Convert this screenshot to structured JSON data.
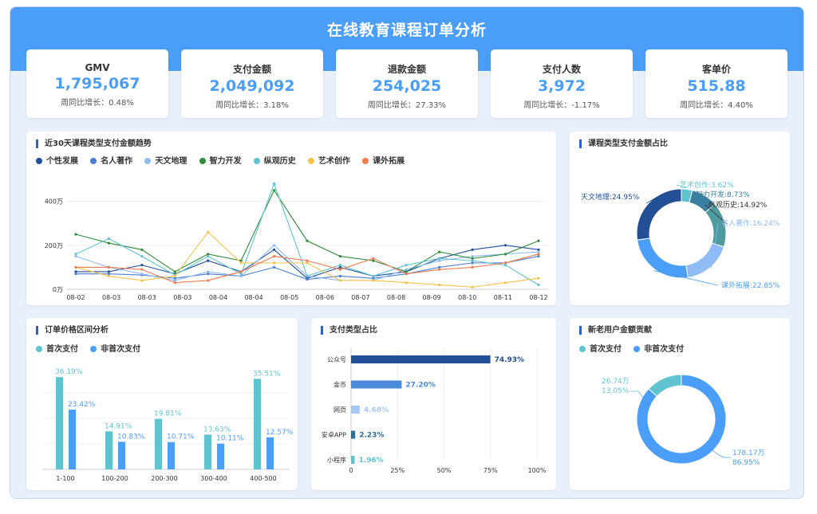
{
  "title": "在线教育课程订单分析",
  "kpis": [
    {
      "label": "GMV",
      "value": "1,795,067",
      "sub": "周同比增长：0.48%"
    },
    {
      "label": "支付金额",
      "value": "2,049,092",
      "sub": "周同比增长：3.18%"
    },
    {
      "label": "退款金额",
      "value": "254,025",
      "sub": "周同比增长：27.33%"
    },
    {
      "label": "支付人数",
      "value": "3,972",
      "sub": "周同比增长：-1.17%"
    },
    {
      "label": "客单价",
      "value": "515.88",
      "sub": "周同比增长：4.40%"
    }
  ],
  "panels": {
    "trend": "近30天课程类型支付金额趋势",
    "share": "课程类型支付金额占比",
    "price": "订单价格区间分析",
    "paytype": "支付类型占比",
    "users": "新老用户金额贡献"
  },
  "colors": {
    "brand": "#4b9ef7",
    "series": [
      "#1f4e9c",
      "#4a7fd4",
      "#8fbcf4",
      "#2e8b3a",
      "#5fc4cf",
      "#f5c24a",
      "#f07b52"
    ]
  },
  "chart_data": [
    {
      "type": "line",
      "categories": [
        "08-02",
        "08-03",
        "08-03",
        "08-03",
        "08-04",
        "08-04",
        "08-05",
        "08-05",
        "08-06",
        "08-07",
        "08-08",
        "08-09",
        "08-10",
        "08-11",
        "08-12"
      ],
      "xtick_labels": [
        "08-02",
        "08-03",
        "08-03",
        "08-03",
        "08-04",
        "08-04",
        "08-05",
        "08-06",
        "08-07",
        "08-08",
        "08-09",
        "08-10",
        "08-11",
        "08-12"
      ],
      "yticks": [
        "0万",
        "200万",
        "400万"
      ],
      "ylim": [
        0,
        500
      ],
      "grid": true,
      "legend": "top-left",
      "series": [
        {
          "name": "个性发展",
          "values": [
            80,
            80,
            110,
            70,
            130,
            80,
            180,
            50,
            100,
            60,
            80,
            140,
            180,
            200,
            180
          ]
        },
        {
          "name": "名人著作",
          "values": [
            70,
            70,
            65,
            50,
            70,
            60,
            100,
            45,
            60,
            50,
            70,
            100,
            120,
            120,
            150
          ]
        },
        {
          "name": "天文地理",
          "values": [
            150,
            100,
            70,
            40,
            80,
            60,
            200,
            60,
            40,
            40,
            90,
            130,
            150,
            160,
            170
          ]
        },
        {
          "name": "智力开发",
          "values": [
            250,
            210,
            180,
            80,
            160,
            130,
            450,
            220,
            150,
            130,
            80,
            170,
            140,
            160,
            220
          ]
        },
        {
          "name": "纵观历史",
          "values": [
            160,
            230,
            150,
            65,
            150,
            70,
            480,
            60,
            110,
            60,
            110,
            140,
            130,
            110,
            20
          ]
        },
        {
          "name": "艺术创作",
          "values": [
            100,
            60,
            40,
            60,
            260,
            120,
            120,
            120,
            40,
            40,
            30,
            20,
            10,
            30,
            50
          ]
        },
        {
          "name": "课外拓展",
          "values": [
            100,
            100,
            90,
            30,
            40,
            80,
            150,
            130,
            90,
            140,
            70,
            90,
            100,
            120,
            160
          ]
        }
      ]
    },
    {
      "type": "pie",
      "labels": [
        "艺术创作",
        "智力开发",
        "纵观历史",
        "名人著作",
        "课外拓展",
        "天文地理"
      ],
      "values": [
        3.62,
        8.73,
        14.92,
        16.24,
        22.85,
        24.95
      ],
      "display": [
        "艺术创作:3.62%",
        "智力开发:8.73%",
        "纵观历史:14.92%",
        "名人著作:16.24%",
        "课外拓展:22.85%",
        "天文地理:24.95%"
      ]
    },
    {
      "type": "bar",
      "categories": [
        "1-100",
        "100-200",
        "200-300",
        "300-400",
        "400-500"
      ],
      "series": [
        {
          "name": "首次支付",
          "values": [
            36.19,
            14.91,
            19.81,
            13.63,
            35.51
          ],
          "labels": [
            "36.19%",
            "14.91%",
            "19.81%",
            "13.63%",
            "35.51%"
          ]
        },
        {
          "name": "非首次支付",
          "values": [
            23.42,
            10.83,
            10.71,
            10.11,
            12.57
          ],
          "labels": [
            "23.42%",
            "10.83%",
            "10.71%",
            "10.11%",
            "12.57%"
          ]
        }
      ],
      "ylim": [
        0,
        40
      ]
    },
    {
      "type": "bar",
      "orientation": "horizontal",
      "categories": [
        "公众号",
        "金币",
        "网页",
        "安卓APP",
        "小程序"
      ],
      "values": [
        74.93,
        27.2,
        4.68,
        2.23,
        1.96
      ],
      "labels": [
        "74.93%",
        "27.20%",
        "4.68%",
        "2.23%",
        "1.96%"
      ],
      "xticks": [
        "0",
        "25%",
        "50%",
        "75%",
        "100%"
      ],
      "xlim": [
        0,
        100
      ]
    },
    {
      "type": "pie",
      "legend": "top-left",
      "labels": [
        "首次支付",
        "非首次支付"
      ],
      "values": [
        13.05,
        86.95
      ],
      "amounts": [
        "26.74万",
        "178.17万"
      ],
      "percents": [
        "13.05%",
        "86.95%"
      ]
    }
  ]
}
